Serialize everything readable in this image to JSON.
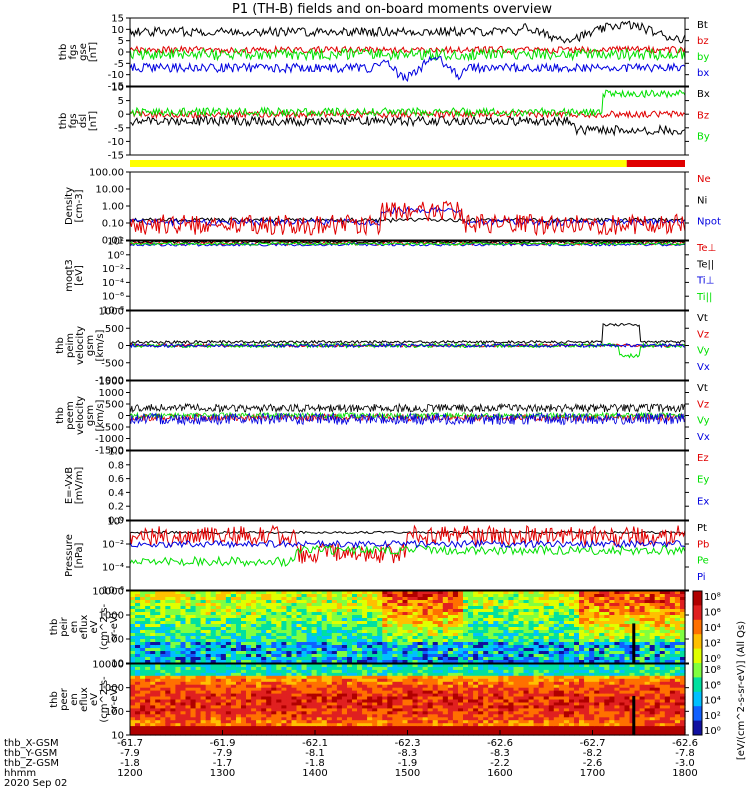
{
  "title": "P1 (TH-B) fields and on-board moments overview",
  "colors": {
    "black": "#000000",
    "red": "#e00000",
    "green": "#00e000",
    "blue": "#0000e0",
    "yellow": "#ffff00",
    "barred": "#e00000"
  },
  "chart_data": {
    "type": "line",
    "date": "2020 Sep 02",
    "time_ticks": [
      "1200",
      "1300",
      "1400",
      "1500",
      "1600",
      "1700",
      "1800"
    ],
    "ephemeris": [
      {
        "label": "thb_X-GSM",
        "values": [
          "-61.7",
          "-61.9",
          "-62.1",
          "-62.3",
          "-62.6",
          "-62.7",
          "-62.6"
        ]
      },
      {
        "label": "thb_Y-GSM",
        "values": [
          "-7.9",
          "-7.9",
          "-8.1",
          "-8.3",
          "-8.3",
          "-8.2",
          "-7.8"
        ]
      },
      {
        "label": "thb_Z-GSM",
        "values": [
          "-1.8",
          "-1.7",
          "-1.8",
          "-1.9",
          "-2.2",
          "-2.6",
          "-3.0"
        ]
      },
      {
        "label": "hhmm",
        "values": [
          "1200",
          "1300",
          "1400",
          "1500",
          "1600",
          "1700",
          "1800"
        ]
      }
    ],
    "date_label": "2020 Sep 02",
    "panels": [
      {
        "id": "fgs_gse",
        "ylabel": [
          "thb",
          "fgs",
          "gse",
          "[nT]"
        ],
        "scale": "linear",
        "ylim": [
          -15,
          15
        ],
        "ticks": [
          "15",
          "10",
          "5",
          "0",
          "-5",
          "-10",
          "-15"
        ],
        "legend": [
          {
            "name": "Bt",
            "color": "black"
          },
          {
            "name": "bz",
            "color": "red"
          },
          {
            "name": "by",
            "color": "green"
          },
          {
            "name": "bx",
            "color": "blue"
          }
        ]
      },
      {
        "id": "fgs_dsl",
        "ylabel": [
          "thb",
          "fgs",
          "dsl",
          "[nT]"
        ],
        "scale": "linear",
        "ylim": [
          -15,
          15
        ],
        "ticks": [
          "10",
          "5",
          "0",
          "-5",
          "-10",
          "-15"
        ],
        "legend": [
          {
            "name": "Bx",
            "color": "black"
          },
          {
            "name": "Bz",
            "color": "red"
          },
          {
            "name": "By",
            "color": "green"
          }
        ]
      },
      {
        "id": "density",
        "ylabel": [
          "Density",
          "[cm-3]"
        ],
        "scale": "log",
        "ylim": [
          0.01,
          100
        ],
        "ticks": [
          "100.00",
          "10.00",
          "1.00",
          "0.10",
          "0.01"
        ],
        "legend": [
          {
            "name": "Ne",
            "color": "red"
          },
          {
            "name": "Ni",
            "color": "black"
          },
          {
            "name": "Npot",
            "color": "blue"
          }
        ]
      },
      {
        "id": "temp",
        "ylabel": [
          "moqt3",
          "[eV]"
        ],
        "scale": "log",
        "ylim": [
          1e-08,
          100
        ],
        "ticks": [
          "10²",
          "10⁰",
          "10⁻²",
          "10⁻⁴",
          "10⁻⁶",
          "10⁻⁸"
        ],
        "legend": [
          {
            "name": "Te⊥",
            "color": "red"
          },
          {
            "name": "Te||",
            "color": "black"
          },
          {
            "name": "Ti⊥",
            "color": "blue"
          },
          {
            "name": "Ti||",
            "color": "green"
          }
        ]
      },
      {
        "id": "peim_vel",
        "ylabel": [
          "thb",
          "peim",
          "velocity",
          "gsm",
          "[km/s]"
        ],
        "scale": "linear",
        "ylim": [
          -1000,
          1000
        ],
        "ticks": [
          "1000",
          "500",
          "0",
          "-500",
          "-1000"
        ],
        "legend": [
          {
            "name": "Vt",
            "color": "black"
          },
          {
            "name": "Vz",
            "color": "red"
          },
          {
            "name": "Vy",
            "color": "green"
          },
          {
            "name": "Vx",
            "color": "blue"
          }
        ]
      },
      {
        "id": "peem_vel",
        "ylabel": [
          "thb",
          "peem",
          "velocity",
          "gsm",
          "[km/s]"
        ],
        "scale": "linear",
        "ylim": [
          -1500,
          1500
        ],
        "ticks": [
          "1500",
          "1000",
          "500",
          "0",
          "-500",
          "-1000",
          "-1500"
        ],
        "legend": [
          {
            "name": "Vt",
            "color": "black"
          },
          {
            "name": "Vz",
            "color": "red"
          },
          {
            "name": "Vy",
            "color": "green"
          },
          {
            "name": "Vx",
            "color": "blue"
          }
        ]
      },
      {
        "id": "efield",
        "ylabel": [
          "E=-VxB",
          "[mV/m]"
        ],
        "scale": "linear",
        "ylim": [
          0,
          1
        ],
        "ticks": [
          "1.0",
          "0.8",
          "0.6",
          "0.4",
          "0.2",
          "0.0"
        ],
        "legend": [
          {
            "name": "Ez",
            "color": "red"
          },
          {
            "name": "Ey",
            "color": "green"
          },
          {
            "name": "Ex",
            "color": "blue"
          }
        ]
      },
      {
        "id": "pressure",
        "ylabel": [
          "Pressure",
          "[nPa]"
        ],
        "scale": "log",
        "ylim": [
          1e-06,
          1
        ],
        "ticks": [
          "10⁰",
          "10⁻²",
          "10⁻⁴",
          "10⁻⁶"
        ],
        "legend": [
          {
            "name": "Pt",
            "color": "black"
          },
          {
            "name": "Pb",
            "color": "red"
          },
          {
            "name": "Pe",
            "color": "green"
          },
          {
            "name": "Pi",
            "color": "blue"
          }
        ]
      },
      {
        "id": "peir_spec",
        "ylabel": [
          "thb",
          "peir",
          "en",
          "eflux",
          "eV",
          "(cm^2-s-",
          "sr-eV)"
        ],
        "scale": "log",
        "ylim": [
          5,
          20000
        ],
        "ticks": [
          "10000",
          "1000",
          "100",
          "10"
        ]
      },
      {
        "id": "peer_spec",
        "ylabel": [
          "thb",
          "peer",
          "en",
          "eflux",
          "eV",
          "(cm^2-s-",
          "sr-eV)"
        ],
        "scale": "log",
        "ylim": [
          5,
          20000
        ],
        "ticks": [
          "10000",
          "1000",
          "100",
          "10"
        ]
      }
    ],
    "colorbar": {
      "label": "[eV/(cm^2-s-sr-eV)] (All Qs)",
      "ticks_upper": [
        "10⁸",
        "10⁶",
        "10⁴",
        "10²",
        "10⁰"
      ],
      "ticks_lower": [
        "10⁸",
        "10⁶",
        "10⁴",
        "10²",
        "10⁰"
      ]
    }
  }
}
